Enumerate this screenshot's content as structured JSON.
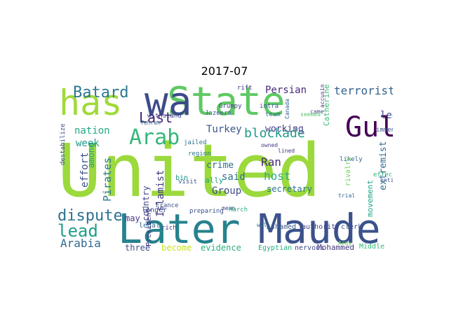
{
  "title": "2017-07",
  "words": [
    {
      "text": "United",
      "color": "#9bd93c",
      "vertical": false
    },
    {
      "text": "Later",
      "color": "#26828e",
      "vertical": false
    },
    {
      "text": "Maude",
      "color": "#3b528b",
      "vertical": false
    },
    {
      "text": "State",
      "color": "#5ec962",
      "vertical": false
    },
    {
      "text": "wa",
      "color": "#3e4a89",
      "vertical": false
    },
    {
      "text": "has",
      "color": "#a0da39",
      "vertical": false
    },
    {
      "text": "Gulf",
      "color": "#440154",
      "vertical": false
    },
    {
      "text": "Arab",
      "color": "#35b779",
      "vertical": false
    },
    {
      "text": "Batard",
      "color": "#2a788e",
      "vertical": false
    },
    {
      "text": "Last",
      "color": "#482475",
      "vertical": false
    },
    {
      "text": "dispute",
      "color": "#2c728e",
      "vertical": false
    },
    {
      "text": "lead",
      "color": "#1f9e89",
      "vertical": false
    },
    {
      "text": "Arabia",
      "color": "#306a8e",
      "vertical": false
    },
    {
      "text": "blockade",
      "color": "#1f9a8a",
      "vertical": false
    },
    {
      "text": "terrorist",
      "color": "#33638d",
      "vertical": false
    },
    {
      "text": "Persian",
      "color": "#482878",
      "vertical": false
    },
    {
      "text": "led",
      "color": "#3b528b",
      "vertical": false
    },
    {
      "text": "nation",
      "color": "#22a785",
      "vertical": false
    },
    {
      "text": "Ran",
      "color": "#472c7a",
      "vertical": false
    },
    {
      "text": "said",
      "color": "#2d708e",
      "vertical": false
    },
    {
      "text": "host",
      "color": "#29af7f",
      "vertical": false
    },
    {
      "text": "Turkey",
      "color": "#39568c",
      "vertical": false
    },
    {
      "text": "working",
      "color": "#433e85",
      "vertical": false
    },
    {
      "text": "crime",
      "color": "#2e6f8e",
      "vertical": false
    },
    {
      "text": "Group",
      "color": "#3e4c8a",
      "vertical": false
    },
    {
      "text": "week",
      "color": "#1e9c89",
      "vertical": false
    },
    {
      "text": "evidence",
      "color": "#2ab07f",
      "vertical": false
    },
    {
      "text": "become",
      "color": "#c8e020",
      "vertical": false
    },
    {
      "text": "three",
      "color": "#3e4989",
      "vertical": false
    },
    {
      "text": "Mohammed",
      "color": "#453882",
      "vertical": false
    },
    {
      "text": "Egyptian",
      "color": "#26ad81",
      "vertical": false
    },
    {
      "text": "nervous",
      "color": "#3f4889",
      "vertical": false
    },
    {
      "text": "secretary",
      "color": "#2c718e",
      "vertical": false
    },
    {
      "text": "ally",
      "color": "#1fa287",
      "vertical": false
    },
    {
      "text": "Ashamed",
      "color": "#38588c",
      "vertical": false
    },
    {
      "text": "authority",
      "color": "#414487",
      "vertical": false
    },
    {
      "text": "clerk",
      "color": "#3c4f8a",
      "vertical": false
    },
    {
      "text": "Middle",
      "color": "#35b779",
      "vertical": false
    },
    {
      "text": "may",
      "color": "#453781",
      "vertical": false
    },
    {
      "text": "legal",
      "color": "#2f6b8e",
      "vertical": false
    },
    {
      "text": "longer",
      "color": "#3d4e8a",
      "vertical": false
    },
    {
      "text": "France",
      "color": "#3b528b",
      "vertical": false
    },
    {
      "text": "region",
      "color": "#2a768e",
      "vertical": false
    },
    {
      "text": "bin",
      "color": "#1f958b",
      "vertical": false
    },
    {
      "text": "rich",
      "color": "#443a83",
      "vertical": false
    },
    {
      "text": "Army",
      "color": "#6ccd5a",
      "vertical": false
    },
    {
      "text": "intra",
      "color": "#3a548c",
      "vertical": false
    },
    {
      "text": "team",
      "color": "#2d708e",
      "vertical": false
    },
    {
      "text": "Grumpy",
      "color": "#433d84",
      "vertical": false
    },
    {
      "text": "Jazeera",
      "color": "#38598c",
      "vertical": false
    },
    {
      "text": "rift",
      "color": "#46337f",
      "vertical": false
    },
    {
      "text": "jailed",
      "color": "#2b748e",
      "vertical": false
    },
    {
      "text": "withstand",
      "color": "#3e4989",
      "vertical": false
    },
    {
      "text": "Tehran",
      "color": "#2e6e8e",
      "vertical": false
    },
    {
      "text": "immense",
      "color": "#3b528b",
      "vertical": false
    },
    {
      "text": "likely",
      "color": "#33638d",
      "vertical": false
    },
    {
      "text": "lined",
      "color": "#46327e",
      "vertical": false
    },
    {
      "text": "owned",
      "color": "#453882",
      "vertical": false
    },
    {
      "text": "visit",
      "color": "#39568c",
      "vertical": false
    },
    {
      "text": "mean",
      "color": "#3f4788",
      "vertical": false
    },
    {
      "text": "preparing",
      "color": "#3b518b",
      "vertical": false
    },
    {
      "text": "March",
      "color": "#2db27d",
      "vertical": false
    },
    {
      "text": "will",
      "color": "#2c718e",
      "vertical": false
    },
    {
      "text": "trial",
      "color": "#31678e",
      "vertical": false
    },
    {
      "text": "effect",
      "color": "#2fb47c",
      "vertical": false
    },
    {
      "text": "entire",
      "color": "#3a538b",
      "vertical": false
    },
    {
      "text": "came",
      "color": "#3f4889",
      "vertical": false
    },
    {
      "text": "seemed",
      "color": "#52c569",
      "vertical": false
    },
    {
      "text": "Pirates",
      "color": "#2a788e",
      "vertical": true
    },
    {
      "text": "effort",
      "color": "#3b528b",
      "vertical": true
    },
    {
      "text": "among",
      "color": "#1fa088",
      "vertical": true
    },
    {
      "text": "Islamist",
      "color": "#453882",
      "vertical": true
    },
    {
      "text": "country",
      "color": "#3f4788",
      "vertical": true
    },
    {
      "text": "President",
      "color": "#46337f",
      "vertical": true
    },
    {
      "text": "extremist",
      "color": "#2f6c8e",
      "vertical": true
    },
    {
      "text": "movement",
      "color": "#20a386",
      "vertical": true
    },
    {
      "text": "rivalry",
      "color": "#6ece58",
      "vertical": true
    },
    {
      "text": "Catherine",
      "color": "#38b977",
      "vertical": true
    },
    {
      "text": "destabilize",
      "color": "#3b528b",
      "vertical": true
    },
    {
      "text": "Canada",
      "color": "#32648e",
      "vertical": true
    },
    {
      "text": "accusing",
      "color": "#472d7b",
      "vertical": true
    }
  ]
}
